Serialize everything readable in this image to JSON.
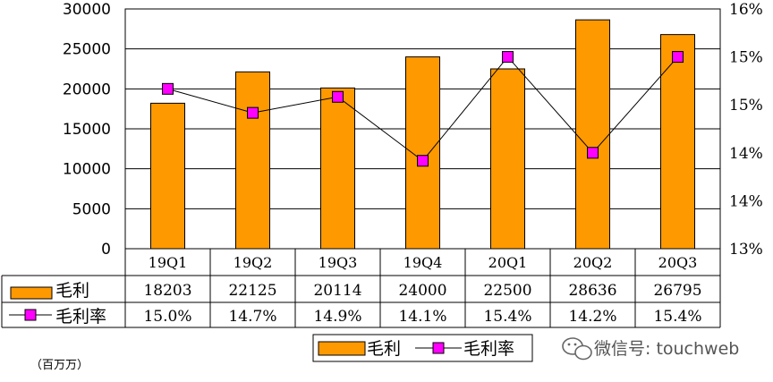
{
  "chart_data": {
    "type": "bar",
    "categories": [
      "19Q1",
      "19Q2",
      "19Q3",
      "19Q4",
      "20Q1",
      "20Q2",
      "20Q3"
    ],
    "series": [
      {
        "name": "毛利",
        "type": "bar",
        "axis": "left",
        "color": "#ff9900",
        "values": [
          18203,
          22125,
          20114,
          24000,
          22500,
          28636,
          26795
        ]
      },
      {
        "name": "毛利率",
        "type": "line",
        "axis": "right",
        "color": "#ff00ff",
        "values": [
          15.0,
          14.7,
          14.9,
          14.1,
          15.4,
          14.2,
          15.4
        ]
      }
    ],
    "table_rows": [
      {
        "label": "毛利",
        "values": [
          "18203",
          "22125",
          "20114",
          "24000",
          "22500",
          "28636",
          "26795"
        ]
      },
      {
        "label": "毛利率",
        "values": [
          "15.0%",
          "14.7%",
          "14.9%",
          "14.1%",
          "15.4%",
          "14.2%",
          "15.4%"
        ]
      }
    ],
    "y_left": {
      "ticks": [
        "0",
        "5000",
        "10000",
        "15000",
        "20000",
        "25000",
        "30000"
      ],
      "ylim": [
        0,
        30000
      ]
    },
    "y_right": {
      "ticks": [
        "13%",
        "14%",
        "14%",
        "15%",
        "15%",
        "16%"
      ]
    },
    "unit_label": "（百万万）",
    "legend": {
      "items": [
        "毛利",
        "毛利率"
      ],
      "position": "bottom-center"
    },
    "grid": true
  },
  "watermark": "微信号: touchweb"
}
